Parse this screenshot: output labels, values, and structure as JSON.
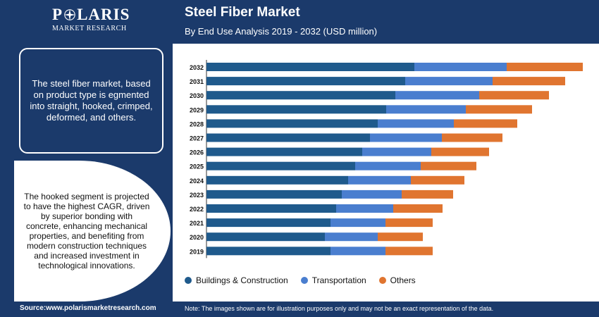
{
  "brand": {
    "name_left": "P",
    "name_right": "LARIS",
    "tagline": "MARKET RESEARCH"
  },
  "header": {
    "title": "Steel Fiber Market",
    "subtitle": "By End Use Analysis 2019 - 2032 (USD million)"
  },
  "sidebar": {
    "box1_text": "The steel fiber market, based on product type is egmented into straight, hooked, crimped, deformed, and others.",
    "box2_text": "The hooked segment is projected to have the highest CAGR, driven by superior bonding with concrete, enhancing mechanical properties, and benefiting from modern construction techniques and increased investment in technological innovations."
  },
  "footer": {
    "source": "Source:www.polarismarketresearch.com",
    "note": "Note: The images shown are for illustration purposes only and may not be an exact representation of the data."
  },
  "colors": {
    "navy": "#1b3a6b",
    "buildings": "#1f5a8c",
    "transportation": "#4a7ecf",
    "others": "#e07530"
  },
  "chart_data": {
    "type": "bar",
    "orientation": "horizontal",
    "stacked": true,
    "categories": [
      "2032",
      "2031",
      "2030",
      "2029",
      "2028",
      "2027",
      "2026",
      "2025",
      "2024",
      "2023",
      "2022",
      "2021",
      "2020",
      "2019"
    ],
    "series": [
      {
        "name": "Buildings & Construction",
        "values": [
          295,
          282,
          268,
          255,
          243,
          232,
          221,
          211,
          201,
          192,
          184,
          176,
          168,
          176
        ]
      },
      {
        "name": "Transportation",
        "values": [
          131,
          124,
          119,
          113,
          108,
          102,
          98,
          93,
          89,
          85,
          81,
          78,
          75,
          78
        ]
      },
      {
        "name": "Others",
        "values": [
          108,
          103,
          99,
          94,
          90,
          86,
          82,
          79,
          76,
          73,
          70,
          67,
          64,
          67
        ]
      }
    ],
    "title": "Steel Fiber Market",
    "xlabel": "",
    "ylabel": "",
    "grid": false,
    "legend": "bottom"
  }
}
